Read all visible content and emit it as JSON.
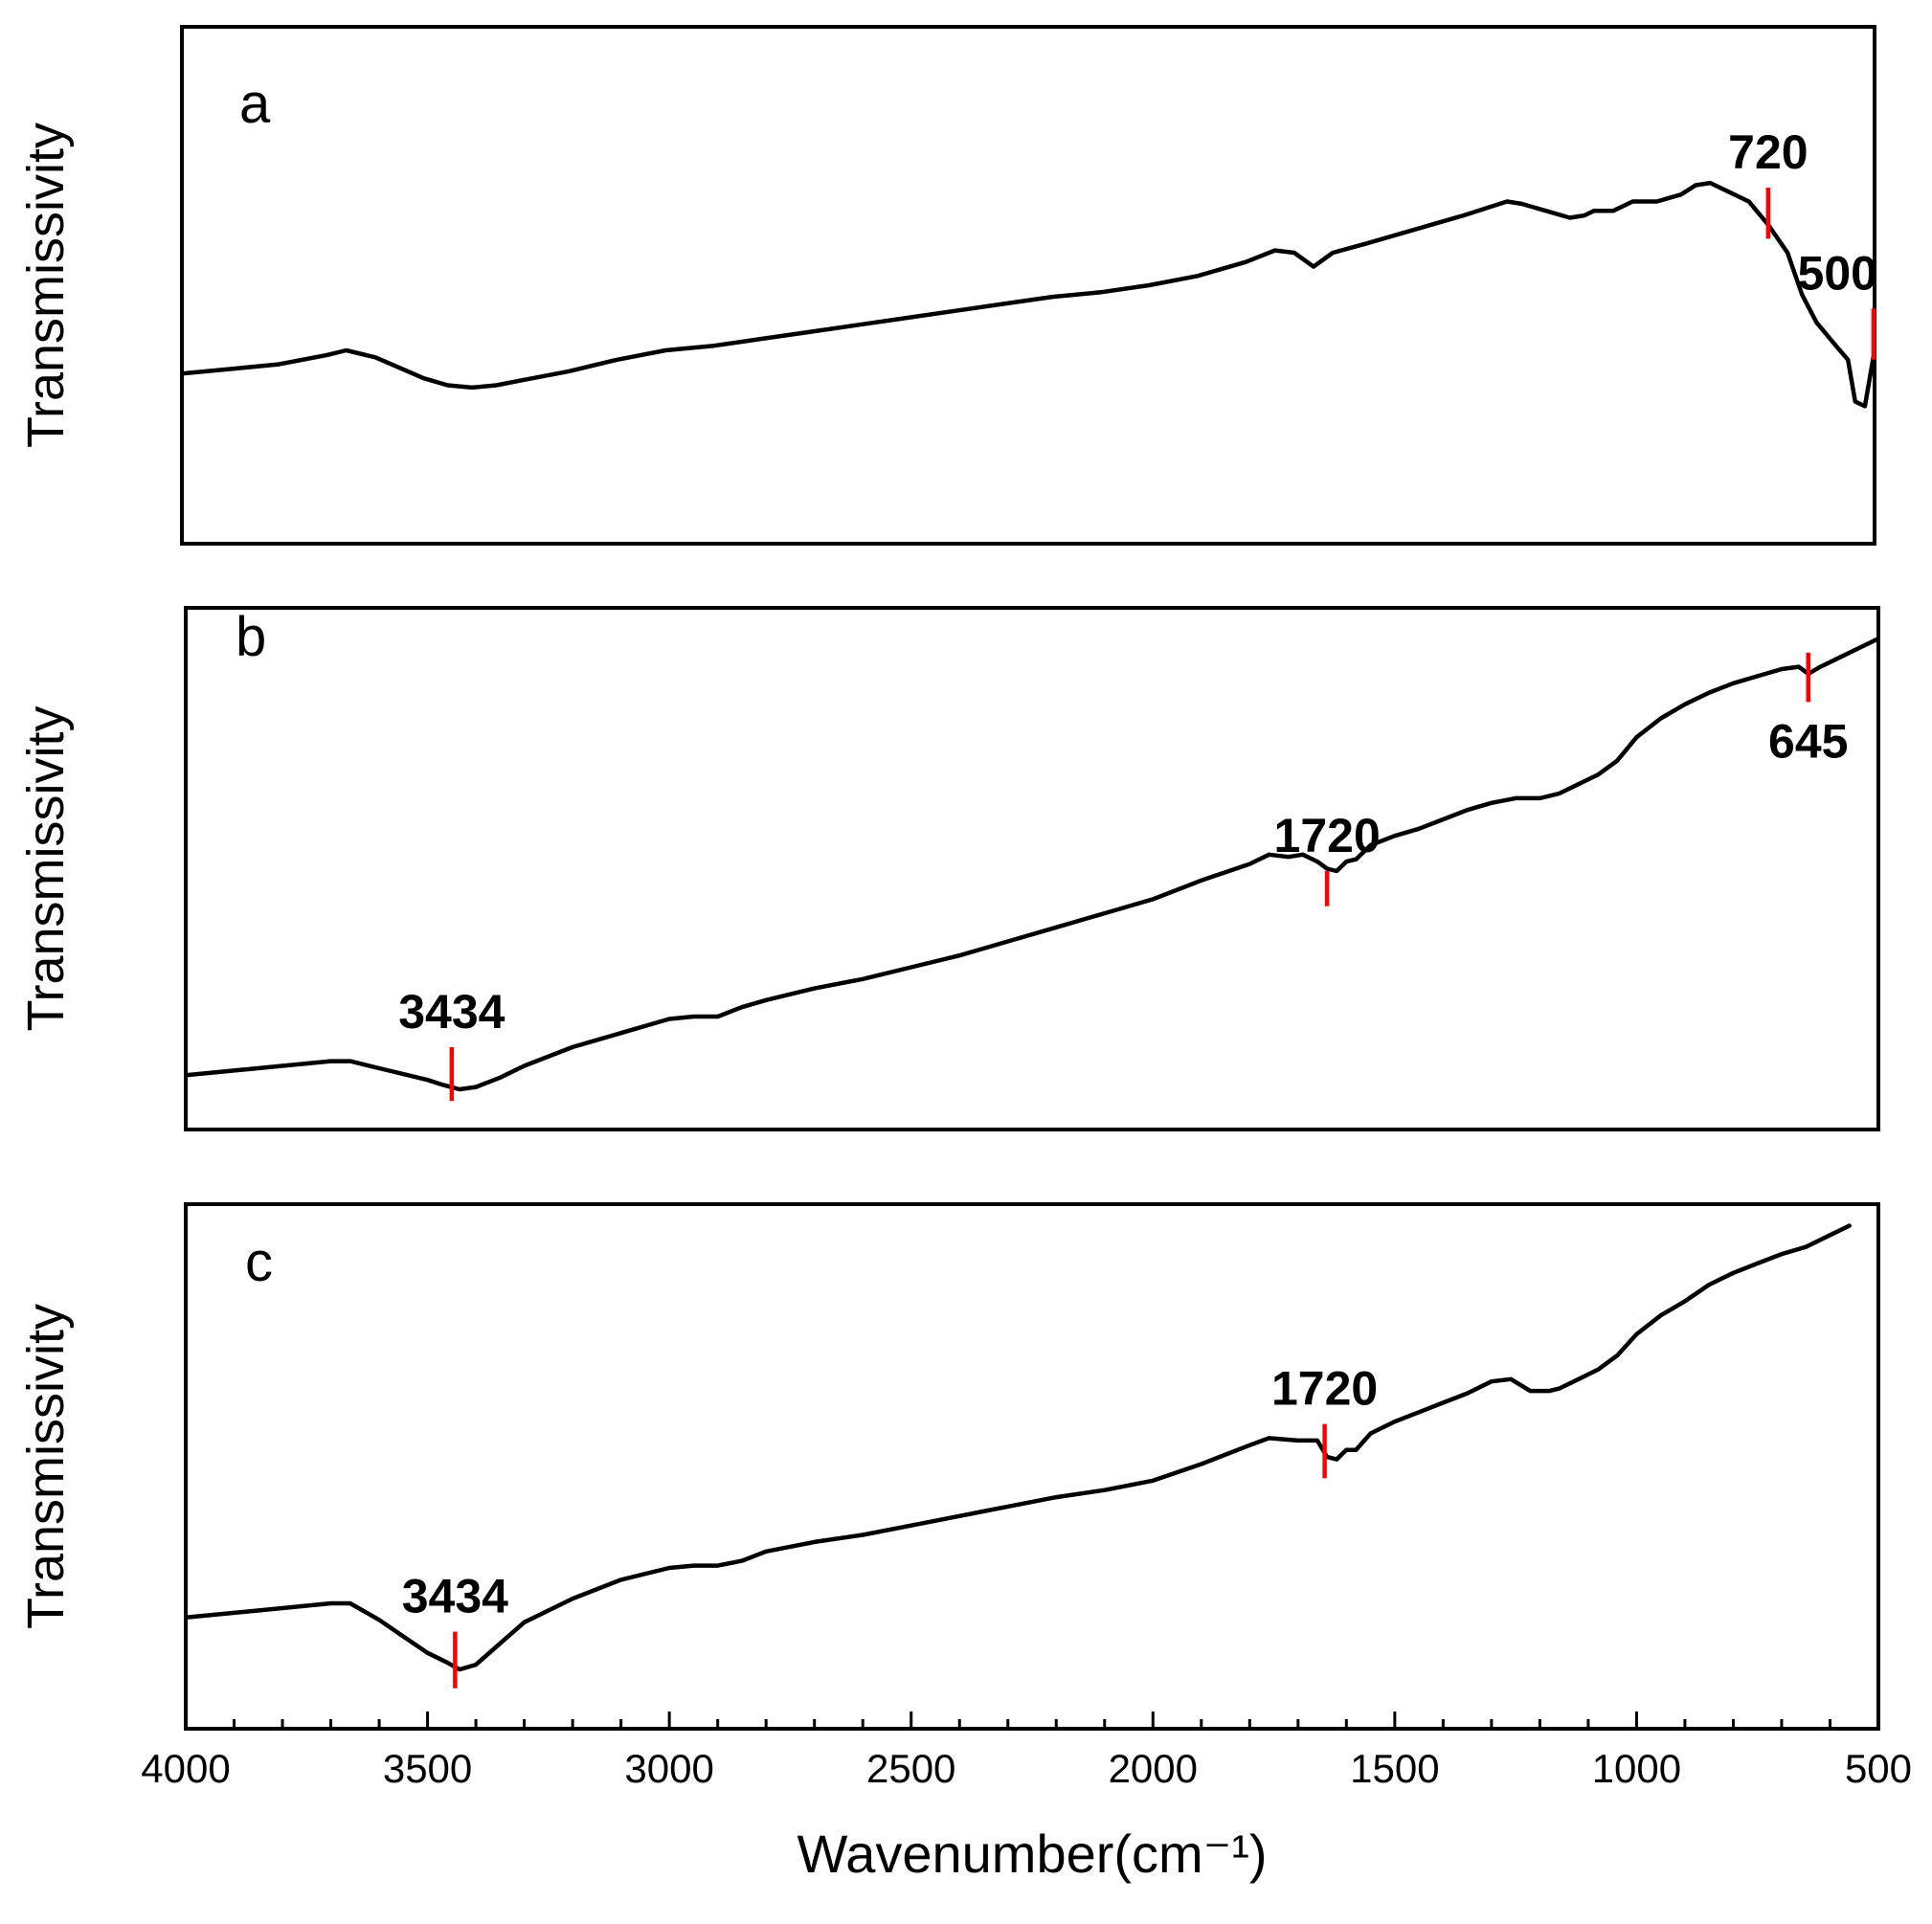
{
  "chart_data": {
    "type": "line",
    "xlabel": "Wavenumber(cm⁻¹)",
    "xlim": [
      4000,
      500
    ],
    "x_ticks": [
      "4000",
      "3500",
      "3000",
      "2500",
      "2000",
      "1500",
      "1000",
      "500"
    ],
    "panels": [
      {
        "label": "a",
        "ylabel": "Transmissivity",
        "ylim": [
          0,
          100
        ],
        "series": [
          {
            "name": "a",
            "points": [
              [
                4000,
                31
              ],
              [
                3900,
                32
              ],
              [
                3800,
                33
              ],
              [
                3700,
                35
              ],
              [
                3660,
                36
              ],
              [
                3600,
                34.5
              ],
              [
                3500,
                30
              ],
              [
                3450,
                28.5
              ],
              [
                3400,
                28
              ],
              [
                3350,
                28.5
              ],
              [
                3300,
                29.5
              ],
              [
                3200,
                31.5
              ],
              [
                3100,
                34
              ],
              [
                3000,
                36
              ],
              [
                2900,
                37
              ],
              [
                2800,
                38.5
              ],
              [
                2700,
                40
              ],
              [
                2600,
                41.5
              ],
              [
                2500,
                43
              ],
              [
                2400,
                44.5
              ],
              [
                2300,
                46
              ],
              [
                2200,
                47.5
              ],
              [
                2100,
                48.5
              ],
              [
                2000,
                50
              ],
              [
                1900,
                52
              ],
              [
                1800,
                55
              ],
              [
                1740,
                57.5
              ],
              [
                1700,
                57
              ],
              [
                1660,
                54
              ],
              [
                1620,
                57
              ],
              [
                1550,
                59
              ],
              [
                1450,
                62
              ],
              [
                1350,
                65
              ],
              [
                1260,
                68
              ],
              [
                1230,
                67.5
              ],
              [
                1180,
                66
              ],
              [
                1130,
                64.5
              ],
              [
                1100,
                65
              ],
              [
                1080,
                66
              ],
              [
                1040,
                66
              ],
              [
                1000,
                68
              ],
              [
                950,
                68
              ],
              [
                900,
                69.5
              ],
              [
                870,
                71.5
              ],
              [
                840,
                72
              ],
              [
                800,
                70
              ],
              [
                760,
                68
              ],
              [
                720,
                63
              ],
              [
                680,
                57
              ],
              [
                650,
                48
              ],
              [
                620,
                42
              ],
              [
                580,
                37
              ],
              [
                555,
                34
              ],
              [
                540,
                25
              ],
              [
                520,
                24
              ],
              [
                500,
                36
              ]
            ]
          }
        ],
        "annotations": [
          {
            "text": "720",
            "x": 720,
            "y1": 60,
            "y2": 71,
            "label_side": "above"
          },
          {
            "text": "500",
            "x": 502,
            "y1": 34,
            "y2": 45,
            "label_side": "above"
          }
        ]
      },
      {
        "label": "b",
        "ylabel": "Transmissivity",
        "ylim": [
          0,
          100
        ],
        "series": [
          {
            "name": "b",
            "points": [
              [
                4000,
                6
              ],
              [
                3900,
                7
              ],
              [
                3800,
                8
              ],
              [
                3700,
                9
              ],
              [
                3660,
                9
              ],
              [
                3600,
                7.5
              ],
              [
                3500,
                5
              ],
              [
                3470,
                4
              ],
              [
                3434,
                3
              ],
              [
                3400,
                3.5
              ],
              [
                3350,
                5.5
              ],
              [
                3300,
                8
              ],
              [
                3200,
                12
              ],
              [
                3100,
                15
              ],
              [
                3000,
                18
              ],
              [
                2950,
                18.5
              ],
              [
                2900,
                18.5
              ],
              [
                2850,
                20.5
              ],
              [
                2800,
                22
              ],
              [
                2700,
                24.5
              ],
              [
                2600,
                26.5
              ],
              [
                2500,
                29
              ],
              [
                2400,
                31.5
              ],
              [
                2300,
                34.5
              ],
              [
                2200,
                37.5
              ],
              [
                2100,
                40.5
              ],
              [
                2000,
                43.5
              ],
              [
                1900,
                47.5
              ],
              [
                1800,
                51
              ],
              [
                1760,
                53
              ],
              [
                1720,
                52.5
              ],
              [
                1690,
                53
              ],
              [
                1660,
                51.5
              ],
              [
                1640,
                50
              ],
              [
                1620,
                49.5
              ],
              [
                1600,
                51.5
              ],
              [
                1580,
                52
              ],
              [
                1550,
                55
              ],
              [
                1500,
                57
              ],
              [
                1450,
                58.5
              ],
              [
                1400,
                60.5
              ],
              [
                1350,
                62.5
              ],
              [
                1300,
                64
              ],
              [
                1250,
                65
              ],
              [
                1200,
                65
              ],
              [
                1160,
                66
              ],
              [
                1120,
                68
              ],
              [
                1080,
                70
              ],
              [
                1040,
                73
              ],
              [
                1000,
                78
              ],
              [
                950,
                82
              ],
              [
                900,
                85
              ],
              [
                850,
                87.5
              ],
              [
                800,
                89.5
              ],
              [
                750,
                91
              ],
              [
                700,
                92.5
              ],
              [
                665,
                93
              ],
              [
                645,
                91.5
              ],
              [
                620,
                93
              ],
              [
                580,
                95
              ],
              [
                540,
                97
              ],
              [
                500,
                99
              ]
            ]
          }
        ],
        "annotations": [
          {
            "text": "645",
            "x": 645,
            "y1": 85.5,
            "y2": 96,
            "label_side": "below"
          },
          {
            "text": "1720",
            "x": 1640,
            "y1": 42,
            "y2": 49.5,
            "label_side": "above"
          },
          {
            "text": "3434",
            "x": 3450,
            "y1": 0.5,
            "y2": 12,
            "label_side": "above"
          }
        ]
      },
      {
        "label": "c",
        "ylabel": "Transmissivity",
        "ylim": [
          0,
          100
        ],
        "series": [
          {
            "name": "c",
            "points": [
              [
                4000,
                18
              ],
              [
                3900,
                19
              ],
              [
                3800,
                20
              ],
              [
                3700,
                21
              ],
              [
                3660,
                21
              ],
              [
                3600,
                17.5
              ],
              [
                3550,
                14
              ],
              [
                3500,
                10.5
              ],
              [
                3460,
                8.5
              ],
              [
                3434,
                7
              ],
              [
                3400,
                8
              ],
              [
                3350,
                12.5
              ],
              [
                3300,
                17
              ],
              [
                3200,
                22
              ],
              [
                3100,
                26
              ],
              [
                3000,
                28.5
              ],
              [
                2950,
                29
              ],
              [
                2900,
                29
              ],
              [
                2850,
                30
              ],
              [
                2800,
                32
              ],
              [
                2700,
                34
              ],
              [
                2600,
                35.5
              ],
              [
                2500,
                37.5
              ],
              [
                2400,
                39.5
              ],
              [
                2300,
                41.5
              ],
              [
                2200,
                43.5
              ],
              [
                2100,
                45
              ],
              [
                2000,
                47
              ],
              [
                1900,
                50.5
              ],
              [
                1800,
                54.5
              ],
              [
                1760,
                56
              ],
              [
                1700,
                55.5
              ],
              [
                1660,
                55.5
              ],
              [
                1640,
                52
              ],
              [
                1620,
                51.5
              ],
              [
                1600,
                53.5
              ],
              [
                1580,
                53.5
              ],
              [
                1550,
                57
              ],
              [
                1500,
                59.5
              ],
              [
                1450,
                61.5
              ],
              [
                1400,
                63.5
              ],
              [
                1350,
                65.5
              ],
              [
                1300,
                68
              ],
              [
                1260,
                68.5
              ],
              [
                1220,
                66
              ],
              [
                1180,
                66
              ],
              [
                1160,
                66.5
              ],
              [
                1120,
                68.5
              ],
              [
                1080,
                70.5
              ],
              [
                1040,
                73.5
              ],
              [
                1000,
                78
              ],
              [
                950,
                82
              ],
              [
                900,
                85
              ],
              [
                850,
                88.5
              ],
              [
                800,
                91
              ],
              [
                750,
                93
              ],
              [
                700,
                95
              ],
              [
                650,
                96.5
              ],
              [
                600,
                99
              ],
              [
                560,
                101
              ]
            ]
          }
        ],
        "annotations": [
          {
            "text": "1720",
            "x": 1645,
            "y1": 47.5,
            "y2": 59,
            "label_side": "above"
          },
          {
            "text": "3434",
            "x": 3443,
            "y1": 3,
            "y2": 15,
            "label_side": "above"
          }
        ]
      }
    ]
  }
}
